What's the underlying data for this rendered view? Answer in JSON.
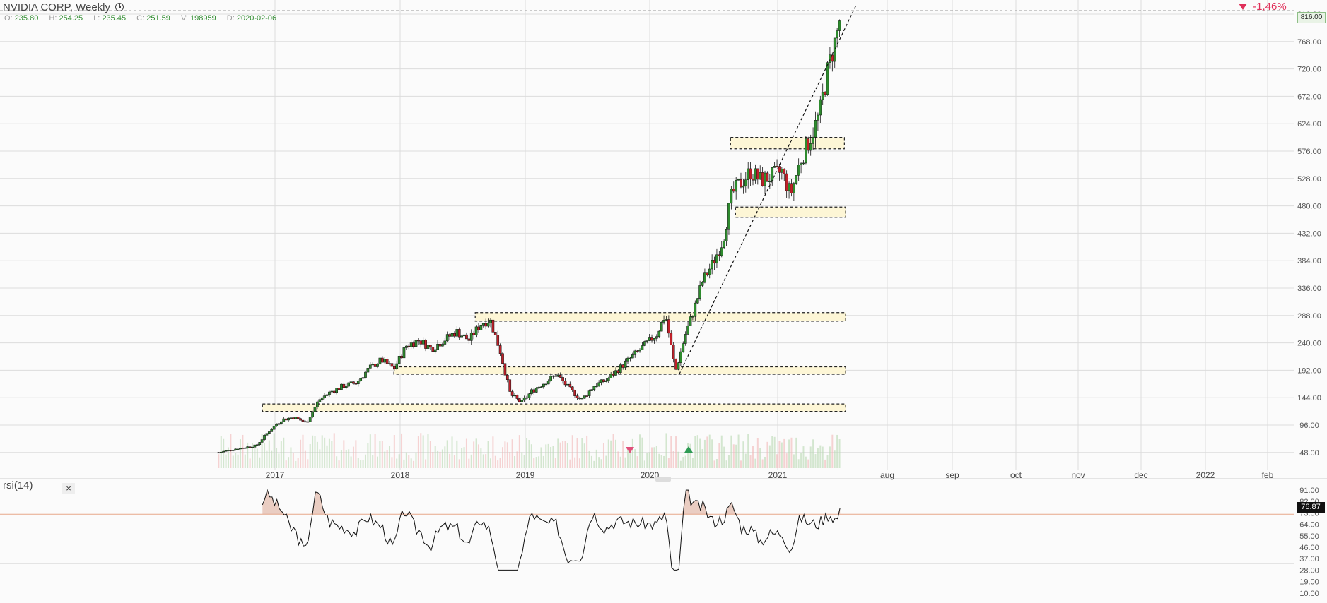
{
  "header": {
    "symbol_title": "NVIDIA CORP, Weekly",
    "change": "-1,46%",
    "ohlc": [
      {
        "k": "O:",
        "v": "235.80"
      },
      {
        "k": "H:",
        "v": "254.25"
      },
      {
        "k": "L:",
        "v": "235.45"
      },
      {
        "k": "C:",
        "v": "251.59"
      },
      {
        "k": "V:",
        "v": "198959"
      },
      {
        "k": "D:",
        "v": "2020-02-06"
      }
    ],
    "last_price": "816.00"
  },
  "rsi_panel": {
    "title": "rsi(14)",
    "close_glyph": "×",
    "value": "76.87"
  },
  "colors": {
    "up": "#2e8b2e",
    "down": "#c0202a",
    "text": "#333333",
    "grid": "#dcdcdc",
    "zone_fill": "#fdf6d6",
    "negative": "#e0305a",
    "rsi_fill": "#d9a08a"
  },
  "chart_data": [
    {
      "type": "candlestick",
      "title": "NVIDIA CORP, Weekly",
      "y_ticks": [
        "816.00",
        "768.00",
        "720.00",
        "672.00",
        "624.00",
        "576.00",
        "528.00",
        "480.00",
        "432.00",
        "384.00",
        "336.00",
        "288.00",
        "240.00",
        "192.00",
        "144.00",
        "96.00",
        "48.00"
      ],
      "x_ticks": [
        "2017",
        "2018",
        "2019",
        "2020",
        "2021",
        "aug",
        "sep",
        "oct",
        "nov",
        "dec",
        "2022",
        "feb"
      ],
      "ylim": [
        40,
        830
      ],
      "grid": true,
      "close_path": [
        [
          2016.55,
          48
        ],
        [
          2016.7,
          55
        ],
        [
          2016.85,
          60
        ],
        [
          2016.95,
          85
        ],
        [
          2017.05,
          105
        ],
        [
          2017.15,
          110
        ],
        [
          2017.25,
          100
        ],
        [
          2017.35,
          140
        ],
        [
          2017.45,
          155
        ],
        [
          2017.55,
          165
        ],
        [
          2017.65,
          170
        ],
        [
          2017.75,
          195
        ],
        [
          2017.85,
          210
        ],
        [
          2017.95,
          195
        ],
        [
          2018.05,
          235
        ],
        [
          2018.15,
          245
        ],
        [
          2018.25,
          230
        ],
        [
          2018.35,
          245
        ],
        [
          2018.45,
          260
        ],
        [
          2018.55,
          245
        ],
        [
          2018.65,
          275
        ],
        [
          2018.72,
          280
        ],
        [
          2018.8,
          225
        ],
        [
          2018.88,
          150
        ],
        [
          2018.97,
          135
        ],
        [
          2019.05,
          155
        ],
        [
          2019.15,
          170
        ],
        [
          2019.25,
          185
        ],
        [
          2019.35,
          160
        ],
        [
          2019.45,
          140
        ],
        [
          2019.55,
          165
        ],
        [
          2019.65,
          175
        ],
        [
          2019.75,
          195
        ],
        [
          2019.85,
          215
        ],
        [
          2019.95,
          235
        ],
        [
          2020.05,
          255
        ],
        [
          2020.12,
          290
        ],
        [
          2020.2,
          190
        ],
        [
          2020.28,
          255
        ],
        [
          2020.35,
          300
        ],
        [
          2020.42,
          350
        ],
        [
          2020.5,
          380
        ],
        [
          2020.58,
          420
        ],
        [
          2020.65,
          500
        ],
        [
          2020.72,
          520
        ],
        [
          2020.8,
          540
        ],
        [
          2020.88,
          525
        ],
        [
          2020.95,
          530
        ],
        [
          2021.05,
          540
        ],
        [
          2021.12,
          500
        ],
        [
          2021.2,
          560
        ],
        [
          2021.28,
          600
        ],
        [
          2021.35,
          640
        ],
        [
          2021.42,
          720
        ],
        [
          2021.5,
          790
        ],
        [
          2021.52,
          816
        ]
      ],
      "resistance_zones": [
        {
          "from": 2020.64,
          "to": 2021.55,
          "low": 580,
          "high": 600
        },
        {
          "from": 2020.68,
          "to": 2021.56,
          "low": 460,
          "high": 478
        },
        {
          "from": 2018.6,
          "to": 2021.56,
          "low": 278,
          "high": 293
        },
        {
          "from": 2017.95,
          "to": 2021.56,
          "low": 185,
          "high": 198
        },
        {
          "from": 2016.9,
          "to": 2021.56,
          "low": 120,
          "high": 133
        }
      ],
      "trendline": {
        "from": [
          2020.23,
          185
        ],
        "to": [
          2021.64,
          830
        ]
      }
    },
    {
      "type": "line",
      "title": "rsi(14)",
      "y_ticks": [
        "91.00",
        "82.00",
        "73.00",
        "64.00",
        "55.00",
        "46.00",
        "37.00",
        "28.00",
        "19.00",
        "10.00"
      ],
      "ylim": [
        10,
        100
      ],
      "reference_line": 72,
      "current": 76.87
    }
  ]
}
